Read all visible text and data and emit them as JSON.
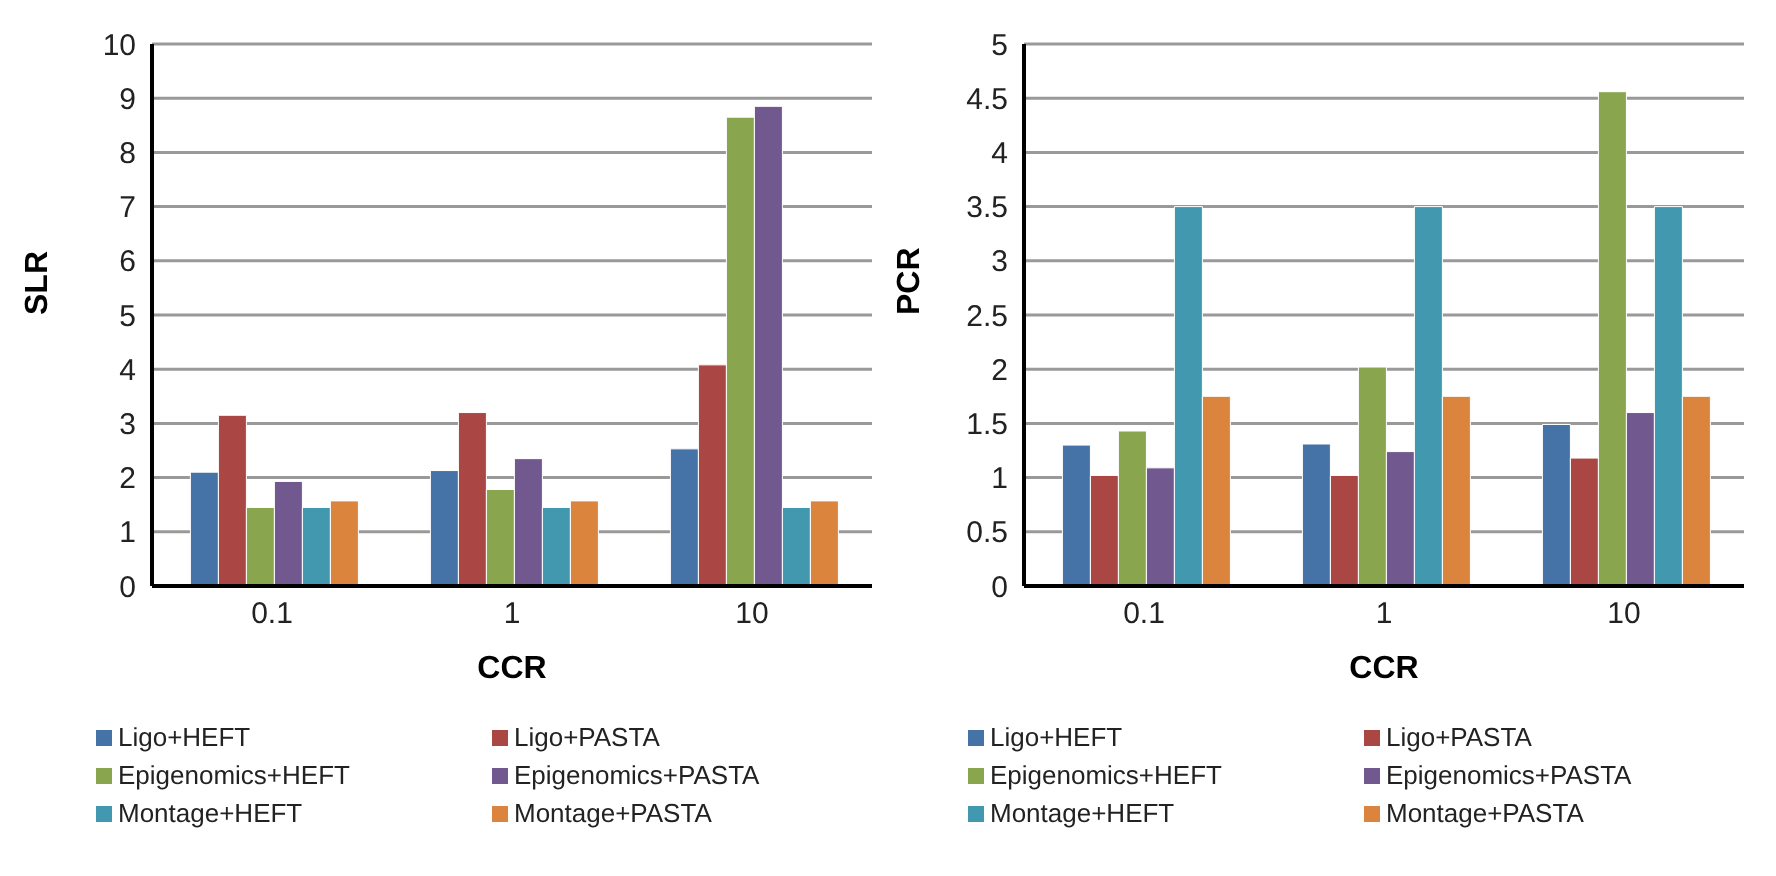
{
  "chart_data": [
    {
      "type": "bar",
      "xlabel": "CCR",
      "ylabel": "SLR",
      "categories": [
        "0.1",
        "1",
        "10"
      ],
      "ylim": [
        0,
        10
      ],
      "yticks": [
        0,
        1,
        2,
        3,
        4,
        5,
        6,
        7,
        8,
        9,
        10
      ],
      "grid": "y",
      "legend": "bottom",
      "series": [
        {
          "name": "Ligo+HEFT",
          "color": "#4572a7",
          "values": [
            2.1,
            2.13,
            2.53
          ]
        },
        {
          "name": "Ligo+PASTA",
          "color": "#aa4643",
          "values": [
            3.15,
            3.2,
            4.08
          ]
        },
        {
          "name": "Epigenomics+HEFT",
          "color": "#89a54e",
          "values": [
            1.45,
            1.78,
            8.65
          ]
        },
        {
          "name": "Epigenomics+PASTA",
          "color": "#71588f",
          "values": [
            1.93,
            2.35,
            8.85
          ]
        },
        {
          "name": "Montage+HEFT",
          "color": "#4198af",
          "values": [
            1.45,
            1.45,
            1.45
          ]
        },
        {
          "name": "Montage+PASTA",
          "color": "#db843d",
          "values": [
            1.57,
            1.57,
            1.57
          ]
        }
      ]
    },
    {
      "type": "bar",
      "xlabel": "CCR",
      "ylabel": "PCR",
      "categories": [
        "0.1",
        "1",
        "10"
      ],
      "ylim": [
        0,
        5
      ],
      "yticks": [
        0,
        0.5,
        1,
        1.5,
        2,
        2.5,
        3,
        3.5,
        4,
        4.5,
        5
      ],
      "grid": "y",
      "legend": "bottom",
      "series": [
        {
          "name": "Ligo+HEFT",
          "color": "#4572a7",
          "values": [
            1.3,
            1.31,
            1.49
          ]
        },
        {
          "name": "Ligo+PASTA",
          "color": "#aa4643",
          "values": [
            1.02,
            1.02,
            1.18
          ]
        },
        {
          "name": "Epigenomics+HEFT",
          "color": "#89a54e",
          "values": [
            1.43,
            2.02,
            4.56
          ]
        },
        {
          "name": "Epigenomics+PASTA",
          "color": "#71588f",
          "values": [
            1.09,
            1.24,
            1.6
          ]
        },
        {
          "name": "Montage+HEFT",
          "color": "#4198af",
          "values": [
            3.5,
            3.5,
            3.5
          ]
        },
        {
          "name": "Montage+PASTA",
          "color": "#db843d",
          "values": [
            1.75,
            1.75,
            1.75
          ]
        }
      ]
    }
  ]
}
